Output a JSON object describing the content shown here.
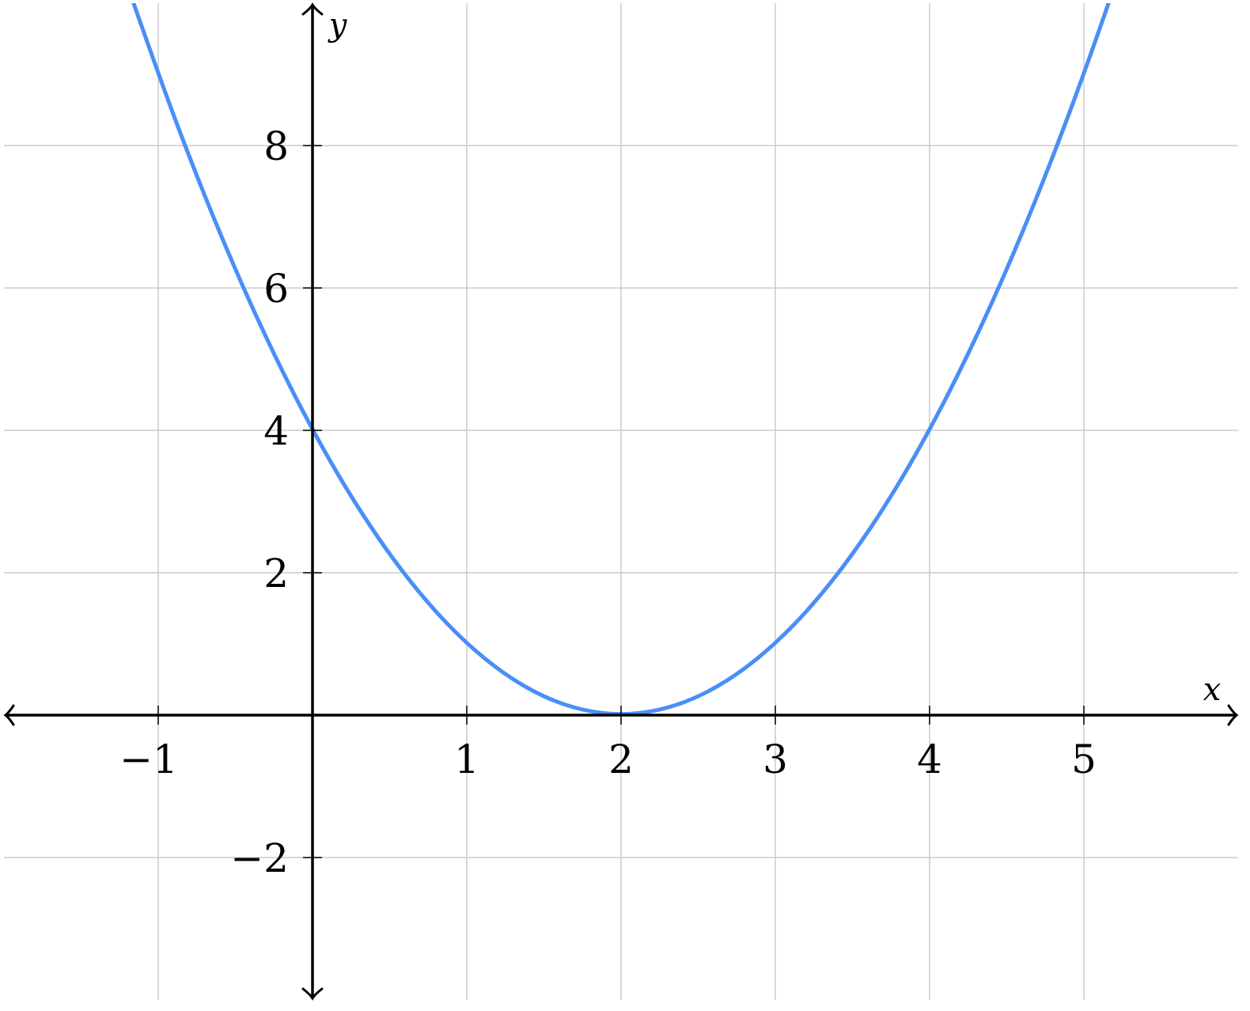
{
  "chart_data": {
    "type": "line",
    "title": "",
    "xlabel": "x",
    "ylabel": "y",
    "xlim": [
      -2,
      6
    ],
    "ylim": [
      -4,
      10
    ],
    "grid": true,
    "x_ticks": [
      -1,
      1,
      2,
      3,
      4,
      5
    ],
    "x_tick_labels": [
      "−1",
      "1",
      "2",
      "3",
      "4",
      "5"
    ],
    "y_ticks": [
      -2,
      2,
      4,
      6,
      8
    ],
    "y_tick_labels": [
      "−2",
      "2",
      "4",
      "6",
      "8"
    ],
    "colors": {
      "series": "#4a8ef7",
      "axis": "#000000",
      "grid": "#cccccc"
    },
    "series": [
      {
        "x": [
          -1.25,
          -1,
          -0.75,
          -0.5,
          -0.25,
          0,
          0.25,
          0.5,
          0.75,
          1,
          1.25,
          1.5,
          1.75,
          2,
          2.25,
          2.5,
          2.75,
          3,
          3.25,
          3.5,
          3.75,
          4,
          4.25,
          4.5,
          4.75,
          5,
          5.25
        ],
        "y": [
          10.5625,
          9,
          7.5625,
          6.25,
          5.0625,
          4,
          3.0625,
          2.25,
          1.5625,
          1,
          0.5625,
          0.25,
          0.0625,
          0,
          0.0625,
          0.25,
          0.5625,
          1,
          1.5625,
          2.25,
          3.0625,
          4,
          5.0625,
          6.25,
          7.5625,
          9,
          10.5625
        ]
      }
    ]
  }
}
